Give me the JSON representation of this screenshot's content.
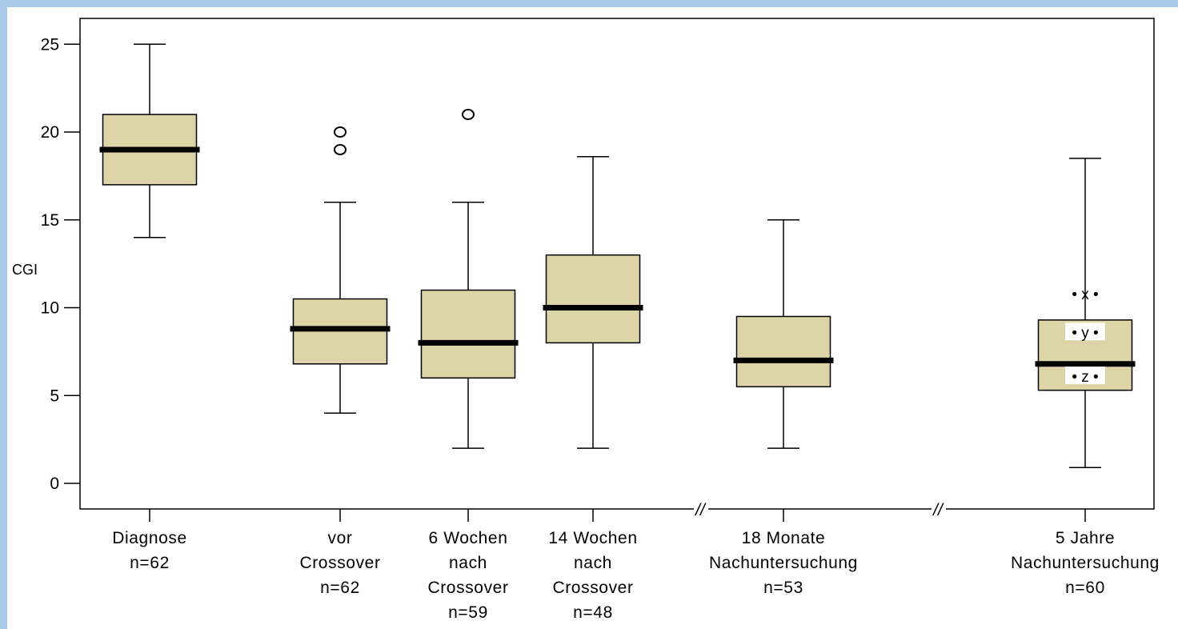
{
  "chart_data": {
    "type": "box",
    "ylabel": "CGI",
    "ylim": [
      -1.5,
      28.5
    ],
    "yticks": [
      0,
      5,
      10,
      15,
      20,
      25
    ],
    "box_color": "#ddd5a8",
    "background": "#a9c9e8",
    "boxes": [
      {
        "label_lines": [
          "Diagnose",
          "n=62"
        ],
        "min": 14,
        "q1": 17,
        "median": 19,
        "q3": 21,
        "max": 25,
        "outliers": []
      },
      {
        "label_lines": [
          "vor",
          "Crossover",
          "n=62"
        ],
        "min": 4,
        "q1": 6.8,
        "median": 8.8,
        "q3": 10.5,
        "max": 16,
        "outliers": [
          19,
          20
        ]
      },
      {
        "label_lines": [
          "6 Wochen",
          "nach",
          "Crossover",
          "n=59"
        ],
        "min": 2,
        "q1": 6,
        "median": 8,
        "q3": 11,
        "max": 16,
        "outliers": [
          21
        ]
      },
      {
        "label_lines": [
          "14 Wochen",
          "nach",
          "Crossover",
          "n=48"
        ],
        "min": 2,
        "q1": 8,
        "median": 10,
        "q3": 13,
        "max": 18.6,
        "outliers": []
      },
      {
        "label_lines": [
          "18 Monate",
          "Nachuntersuchung",
          "n=53"
        ],
        "min": 2,
        "q1": 5.5,
        "median": 7,
        "q3": 9.5,
        "max": 15,
        "outliers": []
      },
      {
        "label_lines": [
          "5 Jahre",
          "Nachuntersuchung",
          "n=60"
        ],
        "min": 0.9,
        "q1": 5.3,
        "median": 6.8,
        "q3": 9.3,
        "max": 18.5,
        "outliers": []
      }
    ],
    "annotations": [
      {
        "text": "• x •",
        "y": 10.8,
        "box_index": 5
      },
      {
        "text": "• y •",
        "y": 8.6,
        "box_index": 5
      },
      {
        "text": "• z •",
        "y": 6.1,
        "box_index": 5
      }
    ],
    "axis_breaks": "//"
  }
}
